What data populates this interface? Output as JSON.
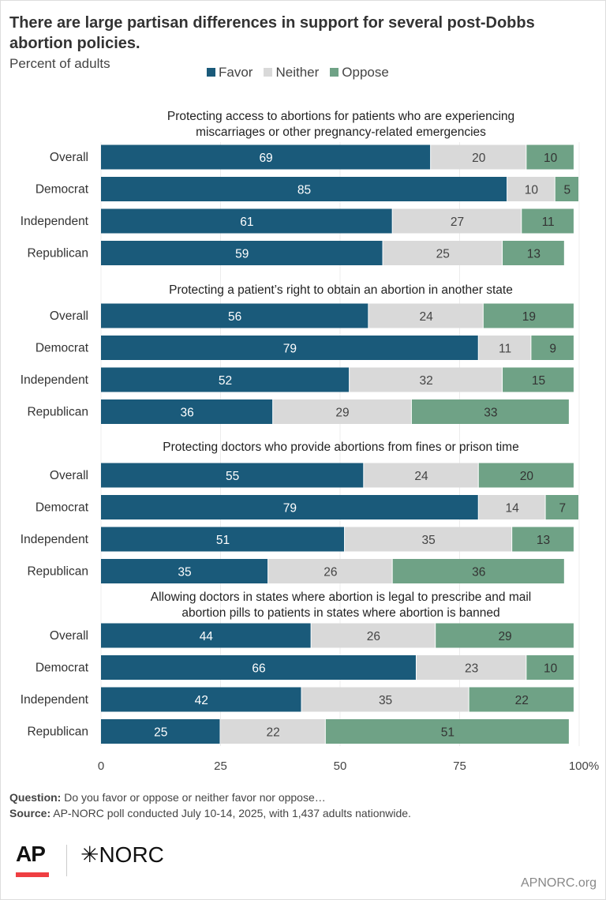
{
  "chart_data": {
    "type": "bar",
    "stacked": true,
    "orientation": "horizontal",
    "title": "There are large partisan differences in support for several post-Dobbs abortion policies.",
    "subtitle": "Percent of adults",
    "legend": [
      "Favor",
      "Neither",
      "Oppose"
    ],
    "legend_placement": "top",
    "colors": {
      "Favor": "#1a5a7a",
      "Neither": "#d9d9d9",
      "Oppose": "#6fa286"
    },
    "xlim": [
      0,
      100
    ],
    "xticks": [
      "0",
      "25",
      "50",
      "75",
      "100%"
    ],
    "grid": true,
    "groups": [
      {
        "title": [
          "Protecting access to abortions for patients who are experiencing",
          "miscarriages or other pregnancy-related emergencies"
        ],
        "rows": [
          {
            "label": "Overall",
            "values": [
              69,
              20,
              10
            ]
          },
          {
            "label": "Democrat",
            "values": [
              85,
              10,
              5
            ]
          },
          {
            "label": "Independent",
            "values": [
              61,
              27,
              11
            ]
          },
          {
            "label": "Republican",
            "values": [
              59,
              25,
              13
            ]
          }
        ]
      },
      {
        "title": [
          "Protecting a patient’s right to obtain an abortion in another state"
        ],
        "rows": [
          {
            "label": "Overall",
            "values": [
              56,
              24,
              19
            ]
          },
          {
            "label": "Democrat",
            "values": [
              79,
              11,
              9
            ]
          },
          {
            "label": "Independent",
            "values": [
              52,
              32,
              15
            ]
          },
          {
            "label": "Republican",
            "values": [
              36,
              29,
              33
            ]
          }
        ]
      },
      {
        "title": [
          "Protecting doctors who provide abortions from fines or prison time"
        ],
        "rows": [
          {
            "label": "Overall",
            "values": [
              55,
              24,
              20
            ]
          },
          {
            "label": "Democrat",
            "values": [
              79,
              14,
              7
            ]
          },
          {
            "label": "Independent",
            "values": [
              51,
              35,
              13
            ]
          },
          {
            "label": "Republican",
            "values": [
              35,
              26,
              36
            ]
          }
        ]
      },
      {
        "title": [
          "Allowing doctors in states where abortion is legal to prescribe and mail",
          "abortion pills to patients in states where abortion is banned"
        ],
        "rows": [
          {
            "label": "Overall",
            "values": [
              44,
              26,
              29
            ]
          },
          {
            "label": "Democrat",
            "values": [
              66,
              23,
              10
            ]
          },
          {
            "label": "Independent",
            "values": [
              42,
              35,
              22
            ]
          },
          {
            "label": "Republican",
            "values": [
              25,
              22,
              51
            ]
          }
        ]
      }
    ]
  },
  "footer": {
    "question_label": "Question:",
    "question": " Do you favor or oppose or neither favor nor oppose…",
    "source_label": "Source:",
    "source": " AP-NORC poll conducted July 10-14, 2025, with 1,437 adults nationwide.",
    "logo_ap": "AP",
    "logo_norc": "✳NORC",
    "url": "APNORC.org"
  }
}
